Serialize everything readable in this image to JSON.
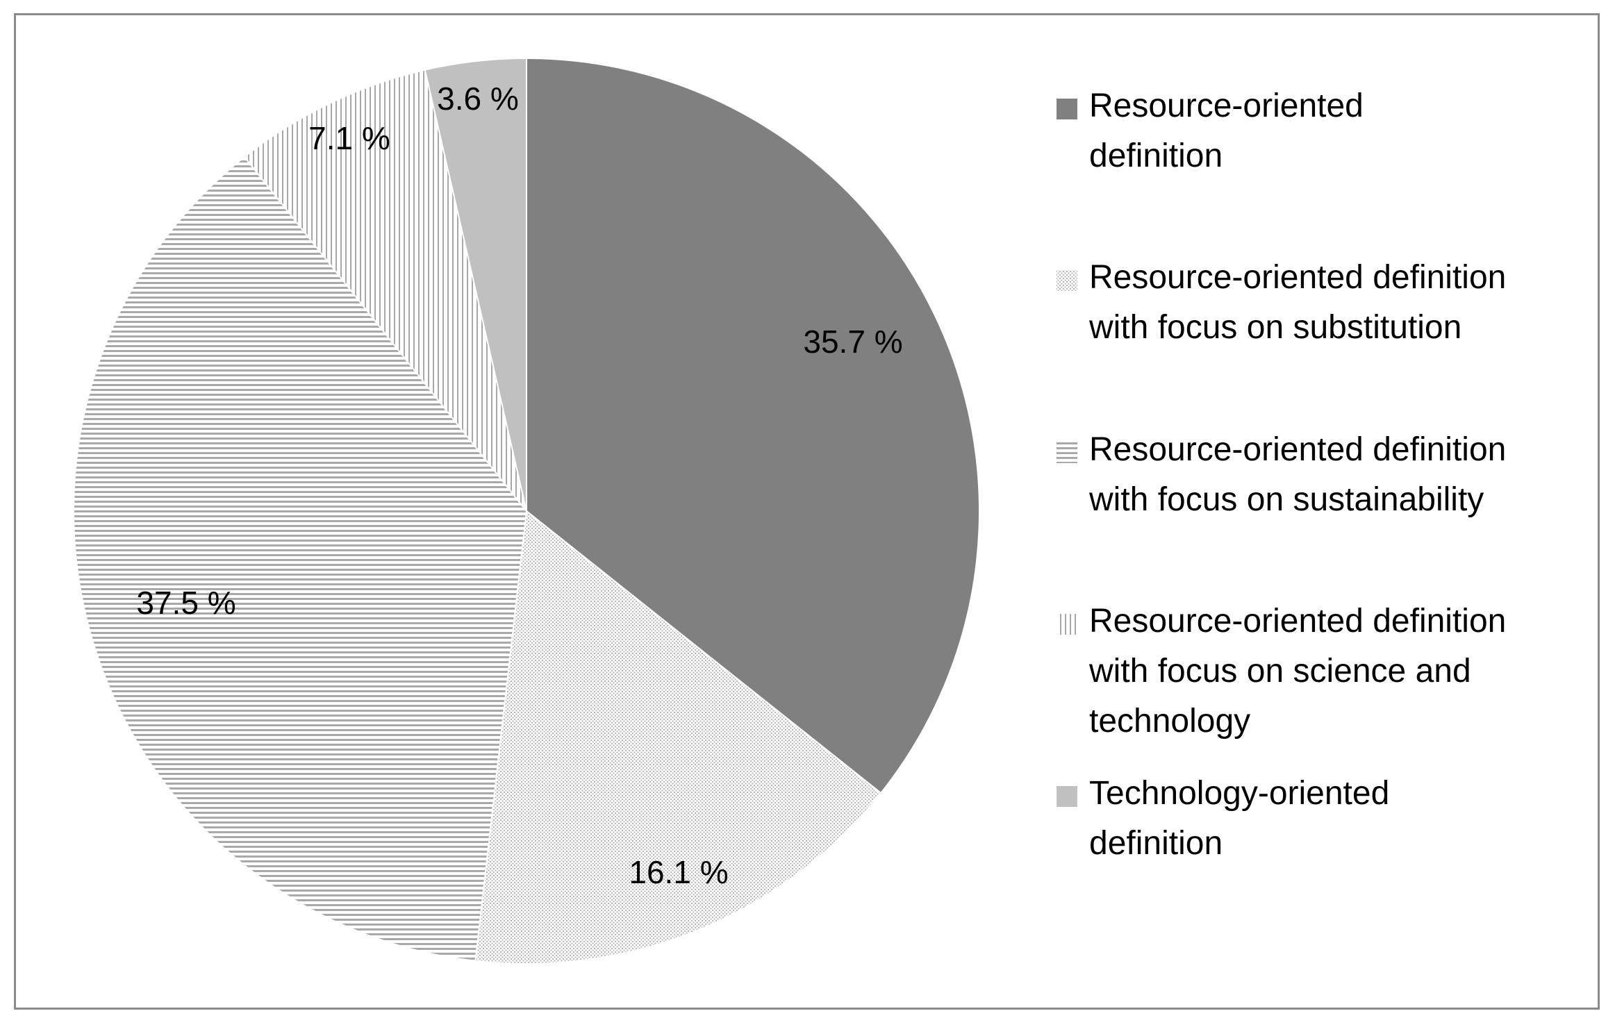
{
  "chart_data": {
    "type": "pie",
    "title": "",
    "slices": [
      {
        "label": "Resource-oriented definition",
        "value": 35.7,
        "value_label": "35.7 %",
        "color": "#808080",
        "pattern": "solid"
      },
      {
        "label": "Resource-oriented definition with focus on substitution",
        "value": 16.1,
        "value_label": "16.1 %",
        "color": "#c8c8c8",
        "pattern": "dots"
      },
      {
        "label": "Resource-oriented definition with focus on sustainability",
        "value": 37.5,
        "value_label": "37.5 %",
        "color": "#a8a8a8",
        "pattern": "horizontal-lines"
      },
      {
        "label": "Resource-oriented definition with focus on science and technology",
        "value": 7.1,
        "value_label": "7.1 %",
        "color": "#a8a8a8",
        "pattern": "vertical-lines"
      },
      {
        "label": "Technology-oriented definition",
        "value": 3.6,
        "value_label": "3.6 %",
        "color": "#c0c0c0",
        "pattern": "solid"
      }
    ],
    "start_angle": "12 o'clock",
    "direction": "clockwise",
    "legend": {
      "placement": "right",
      "items": [
        {
          "lines": [
            " Resource-oriented",
            "definition"
          ]
        },
        {
          "lines": [
            "Resource-oriented definition",
            "with focus on substitution"
          ]
        },
        {
          "lines": [
            "Resource-oriented definition",
            "with focus on sustainability"
          ]
        },
        {
          "lines": [
            "Resource-oriented definition",
            "with focus on science and",
            "technology"
          ]
        },
        {
          "lines": [
            "Technology-oriented",
            "definition"
          ]
        }
      ]
    }
  }
}
